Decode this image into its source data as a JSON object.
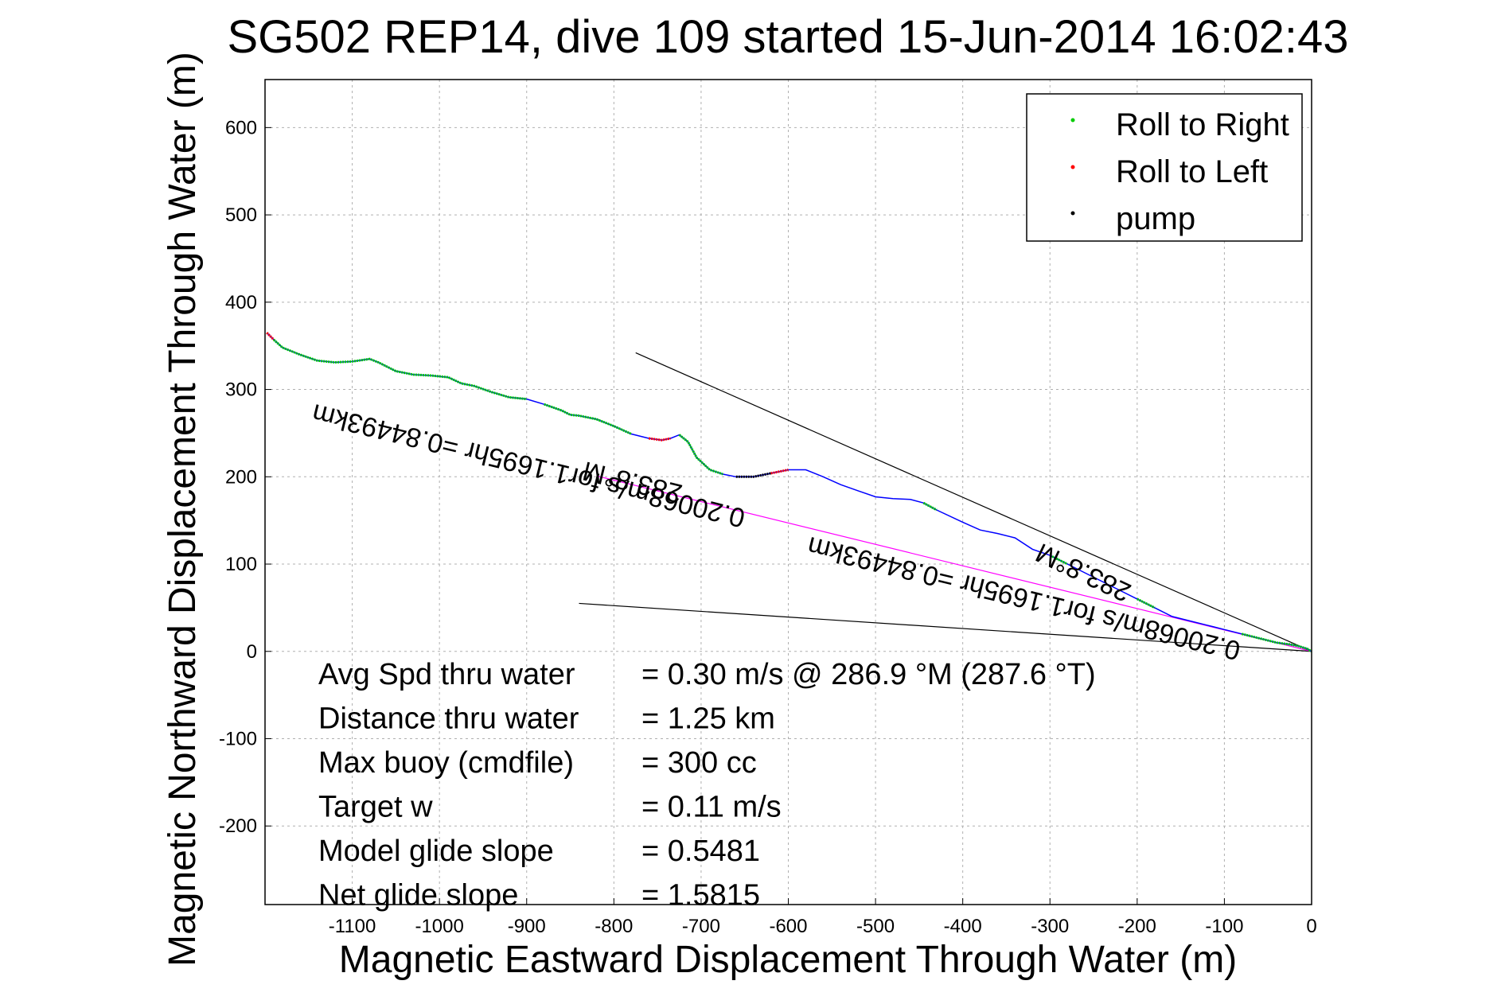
{
  "chart_data": {
    "type": "line",
    "title": "SG502 REP14, dive 109 started 15-Jun-2014 16:02:43",
    "xlabel": "Magnetic Eastward Displacement Through Water (m)",
    "ylabel": "Magnetic Northward Displacement Through Water (m)",
    "xlim": [
      -1200,
      0
    ],
    "ylim": [
      -290,
      655
    ],
    "xticks": [
      -1100,
      -1000,
      -900,
      -800,
      -700,
      -600,
      -500,
      -400,
      -300,
      -200,
      -100,
      0
    ],
    "yticks": [
      -200,
      -100,
      0,
      100,
      200,
      300,
      400,
      500,
      600
    ],
    "grid": true,
    "legend": {
      "placement": "top-right",
      "entries": [
        {
          "label": "Roll to Right",
          "color": "#00cc00"
        },
        {
          "label": "Roll to Left",
          "color": "#ff0000"
        },
        {
          "label": "pump",
          "color": "#000000"
        }
      ]
    },
    "series": [
      {
        "color": "#0000ff",
        "x": [
          -1198,
          -1190,
          -1180,
          -1170,
          -1160,
          -1140,
          -1120,
          -1100,
          -1080,
          -1070,
          -1050,
          -1030,
          -1010,
          -990,
          -975,
          -960,
          -940,
          -920,
          -900,
          -880,
          -860,
          -850,
          -840,
          -820,
          -800,
          -780,
          -760,
          -745,
          -735,
          -725,
          -715,
          -705,
          -690,
          -675,
          -660,
          -640,
          -620,
          -600,
          -580,
          -560,
          -540,
          -520,
          -500,
          -480,
          -460,
          -445,
          -430,
          -400,
          -380,
          -360,
          -340,
          -320,
          -300,
          -280,
          -260,
          -240,
          -220,
          -200,
          -180,
          -160,
          -140,
          -120,
          -100,
          -80,
          -60,
          -40,
          -25,
          -15,
          -5,
          0
        ],
        "y": [
          365,
          357,
          348,
          344,
          340,
          333,
          331,
          332,
          335,
          331,
          321,
          317,
          316,
          314,
          307,
          304,
          297,
          291,
          289,
          283,
          276,
          271,
          270,
          266,
          258,
          249,
          244,
          242,
          244,
          248,
          240,
          222,
          208,
          203,
          200,
          200,
          204,
          208,
          208,
          200,
          191,
          184,
          177,
          175,
          174,
          170,
          162,
          148,
          139,
          135,
          130,
          117,
          110,
          100,
          90,
          80,
          70,
          60,
          50,
          40,
          35,
          30,
          25,
          20,
          15,
          10,
          8,
          6,
          3,
          0
        ]
      }
    ],
    "overlays": [
      {
        "x": [
          -775,
          0
        ],
        "y": [
          342,
          0
        ],
        "color": "#000000"
      },
      {
        "x": [
          -840,
          0
        ],
        "y": [
          55,
          0
        ],
        "color": "#000000"
      },
      {
        "x": [
          -820,
          0
        ],
        "y": [
          201,
          0
        ],
        "color": "#ff00ff"
      }
    ],
    "annotations": [
      {
        "text": "283.8°M",
        "x": -720,
        "y": 190,
        "rotate": 193.8
      },
      {
        "text": "0.20068m/s for1.1695hr =0.84493km",
        "x": -648,
        "y": 162,
        "rotate": 193.8
      },
      {
        "text": "283.8°M",
        "x": -205,
        "y": 75,
        "rotate": 205.3
      },
      {
        "text": "0.20068m/s for1.1695hr =0.84493km",
        "x": -80,
        "y": 10,
        "rotate": 193.8
      }
    ],
    "stats": [
      {
        "label": "Avg Spd thru water",
        "value": "=  0.30 m/s @ 286.9 °M (287.6 °T)"
      },
      {
        "label": "Distance thru water",
        "value": "=  1.25 km"
      },
      {
        "label": "Max buoy (cmdfile)",
        "value": "= 300 cc"
      },
      {
        "label": "Target w",
        "value": "= 0.11 m/s"
      },
      {
        "label": "Model glide slope",
        "value": "= 0.5481"
      },
      {
        "label": "Net glide slope",
        "value": "= 1.5815"
      }
    ]
  }
}
